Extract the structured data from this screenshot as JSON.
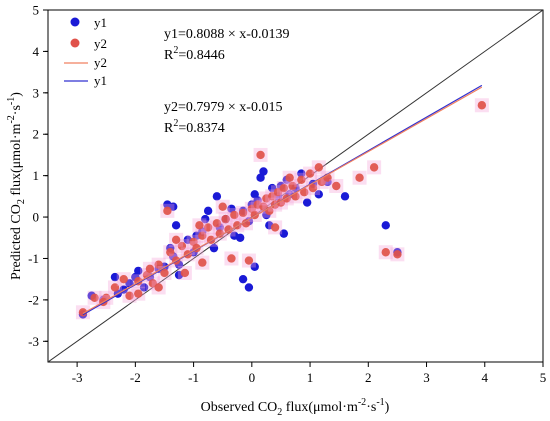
{
  "chart_data": {
    "type": "scatter",
    "xlabel": {
      "pre": "Observed CO",
      "sub1": "2",
      "mid": " flux(μmol·m",
      "sup1": "-2",
      "mid2": "·s",
      "sup2": "-1",
      "post": ")"
    },
    "ylabel": {
      "pre": "Predicted CO",
      "sub1": "2",
      "mid": " flux(μmol·m",
      "sup1": "-2",
      "mid2": "·s",
      "sup2": "-1",
      "post": ")"
    },
    "xlim": [
      -3.5,
      5
    ],
    "ylim": [
      -3.5,
      5
    ],
    "xticks": [
      "-3",
      "-2",
      "-1",
      "0",
      "1",
      "2",
      "3",
      "4",
      "5"
    ],
    "yticks": [
      "-3",
      "-2",
      "-1",
      "0",
      "1",
      "2",
      "3",
      "4",
      "5"
    ],
    "grid": false,
    "legend_position": "top-left",
    "legend": [
      {
        "label": "y1",
        "kind": "marker",
        "color": "#1a1ad6"
      },
      {
        "label": "y2",
        "kind": "marker",
        "color": "#e0524a"
      },
      {
        "label": "y2",
        "kind": "line",
        "color": "#f08060"
      },
      {
        "label": "y1",
        "kind": "line",
        "color": "#3030d0"
      }
    ],
    "annotations": {
      "eq1": "y1=0.8088 × x-0.0139",
      "r2_1": {
        "pre": "R",
        "sup": "2",
        "post": "=0.8446"
      },
      "eq2": "y2=0.7979 × x-0.015",
      "r2_2": {
        "pre": "R",
        "sup": "2",
        "post": "=0.8374"
      }
    },
    "fit_lines": [
      {
        "name": "y1",
        "slope": 0.8088,
        "intercept": -0.0139,
        "x_range": [
          -2.9,
          3.95
        ],
        "color": "#3030d0"
      },
      {
        "name": "y2",
        "slope": 0.7979,
        "intercept": -0.015,
        "x_range": [
          -2.9,
          3.95
        ],
        "color": "#f08060"
      }
    ],
    "reference_line": {
      "name": "1:1",
      "from": [
        -3.5,
        -3.5
      ],
      "to": [
        5,
        5
      ],
      "color": "#333333"
    },
    "series": [
      {
        "name": "y1",
        "color": "#1a1ad6",
        "points": [
          [
            -2.9,
            -2.35
          ],
          [
            -2.75,
            -1.9
          ],
          [
            -2.55,
            -2.0
          ],
          [
            -2.3,
            -1.85
          ],
          [
            -2.1,
            -1.6
          ],
          [
            -2.0,
            -1.45
          ],
          [
            -1.85,
            -1.7
          ],
          [
            -1.75,
            -1.45
          ],
          [
            -1.6,
            -1.25
          ],
          [
            -1.5,
            -1.2
          ],
          [
            -1.4,
            -0.75
          ],
          [
            -1.35,
            -0.95
          ],
          [
            -1.25,
            -1.15
          ],
          [
            -1.3,
            -0.2
          ],
          [
            -1.45,
            0.3
          ],
          [
            -1.35,
            0.25
          ],
          [
            -1.1,
            -0.55
          ],
          [
            -1.0,
            -0.85
          ],
          [
            -0.95,
            -0.45
          ],
          [
            -0.85,
            -0.35
          ],
          [
            -0.8,
            -0.05
          ],
          [
            -0.75,
            0.15
          ],
          [
            -0.6,
            0.5
          ],
          [
            -0.55,
            -0.25
          ],
          [
            -0.45,
            -0.05
          ],
          [
            -0.35,
            0.2
          ],
          [
            -0.3,
            -0.45
          ],
          [
            -0.2,
            -0.5
          ],
          [
            -0.15,
            0.15
          ],
          [
            -0.05,
            -0.1
          ],
          [
            0.0,
            0.3
          ],
          [
            0.05,
            0.55
          ],
          [
            0.1,
            0.4
          ],
          [
            0.15,
            0.95
          ],
          [
            0.2,
            1.1
          ],
          [
            0.25,
            0.05
          ],
          [
            0.3,
            -0.2
          ],
          [
            0.35,
            0.7
          ],
          [
            0.45,
            0.5
          ],
          [
            0.5,
            0.75
          ],
          [
            0.55,
            -0.4
          ],
          [
            0.6,
            0.9
          ],
          [
            0.65,
            0.55
          ],
          [
            0.75,
            0.7
          ],
          [
            0.85,
            1.05
          ],
          [
            0.95,
            0.35
          ],
          [
            1.05,
            0.8
          ],
          [
            1.15,
            0.55
          ],
          [
            1.3,
            0.85
          ],
          [
            1.6,
            0.5
          ],
          [
            2.3,
            -0.2
          ],
          [
            2.5,
            -0.85
          ],
          [
            -2.35,
            -1.45
          ],
          [
            -2.2,
            -1.75
          ],
          [
            -1.95,
            -1.3
          ],
          [
            -0.05,
            -1.7
          ],
          [
            -0.15,
            -1.5
          ],
          [
            0.05,
            -1.2
          ],
          [
            -1.25,
            -1.4
          ],
          [
            -0.65,
            -0.75
          ]
        ]
      },
      {
        "name": "y2",
        "color": "#e0524a",
        "points": [
          [
            -2.9,
            -2.3
          ],
          [
            -2.7,
            -1.95
          ],
          [
            -2.5,
            -1.95
          ],
          [
            -2.35,
            -1.7
          ],
          [
            -2.2,
            -1.5
          ],
          [
            -2.1,
            -1.9
          ],
          [
            -1.95,
            -1.55
          ],
          [
            -1.8,
            -1.4
          ],
          [
            -1.7,
            -1.6
          ],
          [
            -1.6,
            -1.15
          ],
          [
            -1.5,
            -1.35
          ],
          [
            -1.4,
            -0.85
          ],
          [
            -1.3,
            -1.05
          ],
          [
            -1.2,
            -0.7
          ],
          [
            -1.1,
            -0.9
          ],
          [
            -1.0,
            -0.6
          ],
          [
            -0.95,
            -0.75
          ],
          [
            -0.85,
            -0.45
          ],
          [
            -0.75,
            -0.25
          ],
          [
            -0.7,
            -0.55
          ],
          [
            -0.6,
            -0.15
          ],
          [
            -0.55,
            -0.4
          ],
          [
            -0.45,
            -0.05
          ],
          [
            -0.4,
            -0.3
          ],
          [
            -0.3,
            0.05
          ],
          [
            -0.25,
            -0.2
          ],
          [
            -0.15,
            0.1
          ],
          [
            -0.1,
            -0.15
          ],
          [
            0.0,
            0.2
          ],
          [
            0.05,
            0.05
          ],
          [
            0.1,
            0.3
          ],
          [
            0.15,
            1.5
          ],
          [
            0.2,
            0.25
          ],
          [
            0.25,
            0.45
          ],
          [
            0.3,
            0.15
          ],
          [
            0.35,
            0.5
          ],
          [
            0.4,
            0.3
          ],
          [
            0.45,
            0.6
          ],
          [
            0.5,
            0.35
          ],
          [
            0.55,
            0.7
          ],
          [
            0.6,
            0.45
          ],
          [
            0.7,
            0.75
          ],
          [
            0.75,
            0.5
          ],
          [
            0.85,
            0.9
          ],
          [
            0.9,
            0.6
          ],
          [
            1.0,
            1.05
          ],
          [
            1.05,
            0.7
          ],
          [
            1.15,
            1.2
          ],
          [
            1.2,
            0.85
          ],
          [
            1.3,
            0.95
          ],
          [
            1.45,
            0.75
          ],
          [
            1.85,
            0.95
          ],
          [
            2.1,
            1.2
          ],
          [
            2.3,
            -0.85
          ],
          [
            2.5,
            -0.9
          ],
          [
            3.95,
            2.7
          ],
          [
            -1.45,
            0.15
          ],
          [
            -1.3,
            -0.55
          ],
          [
            -0.85,
            -1.1
          ],
          [
            -0.35,
            -1.0
          ],
          [
            -1.95,
            -1.85
          ],
          [
            -1.6,
            -1.7
          ],
          [
            -1.15,
            -1.35
          ],
          [
            -0.05,
            -1.05
          ],
          [
            0.4,
            -0.25
          ],
          [
            -2.55,
            -2.05
          ],
          [
            -1.75,
            -1.25
          ],
          [
            -0.9,
            -0.2
          ],
          [
            -0.5,
            0.25
          ],
          [
            0.65,
            0.95
          ]
        ]
      }
    ]
  }
}
